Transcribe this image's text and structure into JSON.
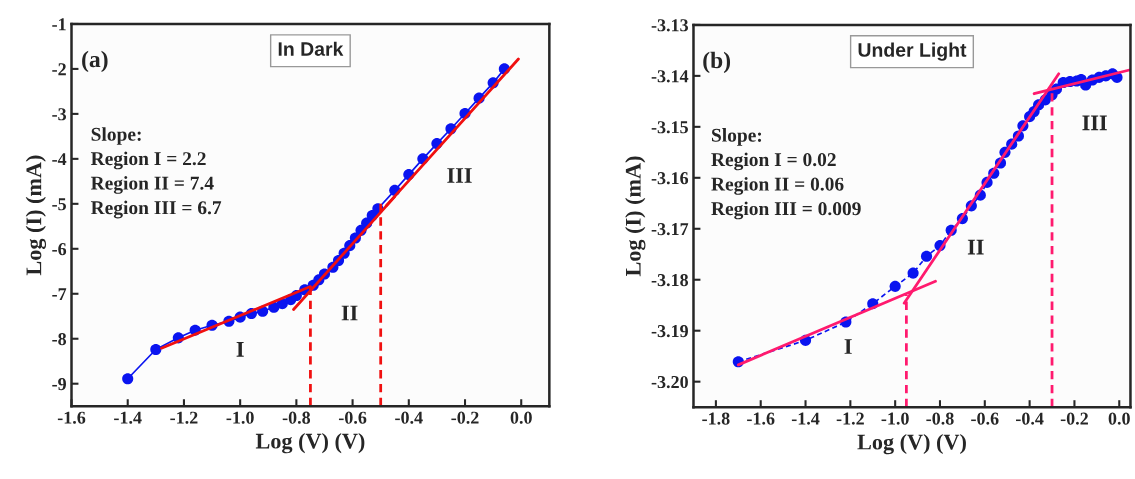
{
  "chart_data": [
    {
      "type": "line",
      "title": "In Dark",
      "xlabel": "Log (V) (V)",
      "ylabel": "Log (I) (mA)",
      "xlim": [
        -1.6,
        0.1
      ],
      "xticks": [
        {
          "value": -1.6,
          "label": "-1.6"
        },
        {
          "value": -1.4,
          "label": "-1.4"
        },
        {
          "value": -1.2,
          "label": "-1.2"
        },
        {
          "value": -1.0,
          "label": "-1.0"
        },
        {
          "value": -0.8,
          "label": "-0.8"
        },
        {
          "value": -0.6,
          "label": "-0.6"
        },
        {
          "value": -0.4,
          "label": "-0.4"
        },
        {
          "value": -0.2,
          "label": "-0.2"
        },
        {
          "value": 0.0,
          "label": "0.0"
        }
      ],
      "ylim": [
        -9.5,
        -1
      ],
      "yticks": [
        -9,
        -8,
        -7,
        -6,
        -5,
        -4,
        -3,
        -2,
        -1
      ],
      "grid": false,
      "legend": false,
      "series": [
        {
          "color": "#0a14f0",
          "marker": "circle",
          "line_style": "solid",
          "x": [
            -1.4,
            -1.3,
            -1.22,
            -1.16,
            -1.1,
            -1.04,
            -1.0,
            -0.96,
            -0.92,
            -0.88,
            -0.85,
            -0.82,
            -0.8,
            -0.77,
            -0.74,
            -0.72,
            -0.7,
            -0.67,
            -0.65,
            -0.63,
            -0.61,
            -0.59,
            -0.57,
            -0.55,
            -0.53,
            -0.51,
            -0.45,
            -0.4,
            -0.35,
            -0.3,
            -0.25,
            -0.2,
            -0.15,
            -0.1,
            -0.06
          ],
          "values": [
            -8.89,
            -8.24,
            -7.98,
            -7.81,
            -7.7,
            -7.61,
            -7.52,
            -7.44,
            -7.39,
            -7.3,
            -7.22,
            -7.13,
            -7.04,
            -6.91,
            -6.81,
            -6.69,
            -6.56,
            -6.41,
            -6.26,
            -6.1,
            -5.93,
            -5.76,
            -5.59,
            -5.43,
            -5.26,
            -5.11,
            -4.7,
            -4.35,
            -4.0,
            -3.66,
            -3.33,
            -2.99,
            -2.65,
            -2.31,
            -2.0
          ]
        },
        {
          "color": "#f01010",
          "marker": "none",
          "line_style": "solid",
          "x": [
            -1.28,
            -0.75
          ],
          "values": [
            -8.21,
            -6.84
          ]
        },
        {
          "color": "#f01010",
          "marker": "none",
          "line_style": "solid",
          "x": [
            -0.81,
            -0.45
          ],
          "values": [
            -7.35,
            -4.84
          ]
        },
        {
          "color": "#f01010",
          "marker": "none",
          "line_style": "solid",
          "x": [
            -0.48,
            -0.01
          ],
          "values": [
            -5.04,
            -1.78
          ]
        },
        {
          "color": "#f01010",
          "marker": "none",
          "line_style": "dashed",
          "x": [
            -0.75,
            -0.75
          ],
          "values": [
            -9.5,
            -6.85
          ]
        },
        {
          "color": "#f01010",
          "marker": "none",
          "line_style": "dashed",
          "x": [
            -0.5,
            -0.5
          ],
          "values": [
            -9.5,
            -5.0
          ]
        }
      ],
      "annotations": [
        "(a)",
        "Slope:\nRegion I = 2.2\nRegion II = 7.4\nRegion III = 6.7",
        "I",
        "II",
        "III"
      ]
    },
    {
      "type": "line",
      "title": "Under Light",
      "xlabel": "Log (V) (V)",
      "ylabel": "Log (I) (mA)",
      "xlim": [
        -1.9,
        0.05
      ],
      "xticks": [
        {
          "value": -1.8,
          "label": "-1.8"
        },
        {
          "value": -1.6,
          "label": "-1.6"
        },
        {
          "value": -1.4,
          "label": "-1.4"
        },
        {
          "value": -1.2,
          "label": "-1.2"
        },
        {
          "value": -1.0,
          "label": "-1.0"
        },
        {
          "value": -0.8,
          "label": "-0.8"
        },
        {
          "value": -0.6,
          "label": "-0.6"
        },
        {
          "value": -0.4,
          "label": "-0.4"
        },
        {
          "value": -0.2,
          "label": "-0.2"
        },
        {
          "value": 0.0,
          "label": "0.0"
        }
      ],
      "ylim": [
        -3.205,
        -3.13
      ],
      "yticks": [
        {
          "value": -3.2,
          "label": "-3.20"
        },
        {
          "value": -3.19,
          "label": "-3.19"
        },
        {
          "value": -3.18,
          "label": "-3.18"
        },
        {
          "value": -3.17,
          "label": "-3.17"
        },
        {
          "value": -3.16,
          "label": "-3.16"
        },
        {
          "value": -3.15,
          "label": "-3.15"
        },
        {
          "value": -3.14,
          "label": "-3.14"
        },
        {
          "value": -3.13,
          "label": "-3.13"
        }
      ],
      "grid": false,
      "legend": false,
      "series": [
        {
          "color": "#0a14f0",
          "marker": "circle",
          "line_style": "dashed",
          "x": [
            -1.7,
            -1.4,
            -1.22,
            -1.1,
            -1.0,
            -0.92,
            -0.86,
            -0.8,
            -0.75,
            -0.7,
            -0.66,
            -0.62,
            -0.59,
            -0.56,
            -0.53,
            -0.51,
            -0.48,
            -0.45,
            -0.43,
            -0.4,
            -0.38,
            -0.36,
            -0.33,
            -0.3,
            -0.28,
            -0.25,
            -0.22,
            -0.19,
            -0.17,
            -0.15,
            -0.12,
            -0.09,
            -0.06,
            -0.03,
            -0.01
          ],
          "values": [
            -3.1961,
            -3.1919,
            -3.1883,
            -3.1847,
            -3.1813,
            -3.1787,
            -3.1754,
            -3.1733,
            -3.1703,
            -3.168,
            -3.1655,
            -3.1634,
            -3.1609,
            -3.1591,
            -3.1571,
            -3.155,
            -3.1534,
            -3.1518,
            -3.1498,
            -3.148,
            -3.147,
            -3.1457,
            -3.1447,
            -3.1437,
            -3.1426,
            -3.1413,
            -3.1411,
            -3.141,
            -3.1407,
            -3.1418,
            -3.1408,
            -3.1403,
            -3.14,
            -3.1396,
            -3.1403
          ]
        },
        {
          "color": "#ff1a6e",
          "marker": "none",
          "line_style": "solid",
          "x": [
            -1.7,
            -0.82
          ],
          "values": [
            -3.1967,
            -3.1803
          ]
        },
        {
          "color": "#ff1a6e",
          "marker": "none",
          "line_style": "solid",
          "x": [
            -0.96,
            -0.27
          ],
          "values": [
            -3.1846,
            -3.1396
          ]
        },
        {
          "color": "#ff1a6e",
          "marker": "none",
          "line_style": "solid",
          "x": [
            -0.38,
            0.05
          ],
          "values": [
            -3.1435,
            -3.1388
          ]
        },
        {
          "color": "#ff1a6e",
          "marker": "none",
          "line_style": "dashed",
          "x": [
            -0.95,
            -0.95
          ],
          "values": [
            -3.205,
            -3.183
          ]
        },
        {
          "color": "#ff1a6e",
          "marker": "none",
          "line_style": "dashed",
          "x": [
            -0.3,
            -0.3
          ],
          "values": [
            -3.205,
            -3.1432
          ]
        }
      ],
      "annotations": [
        "(b)",
        "Slope:\nRegion I = 0.02\nRegion II = 0.06\nRegion III = 0.009",
        "I",
        "II",
        "III"
      ]
    }
  ]
}
